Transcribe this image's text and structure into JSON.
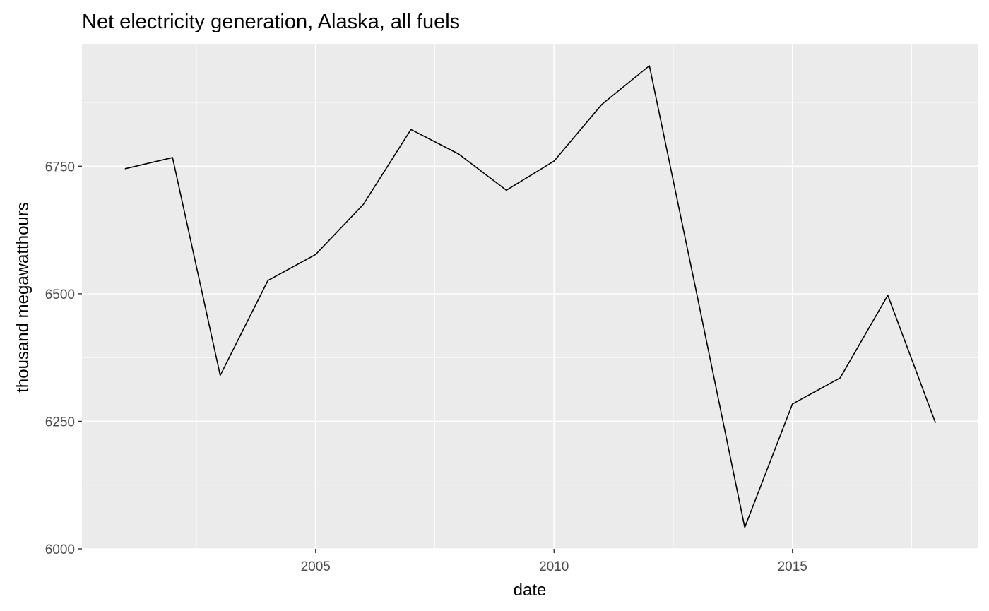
{
  "chart_data": {
    "type": "line",
    "title": "Net electricity generation, Alaska, all fuels",
    "xlabel": "date",
    "ylabel": "thousand megawatthours",
    "x": [
      2001,
      2002,
      2003,
      2004,
      2005,
      2006,
      2007,
      2008,
      2009,
      2010,
      2011,
      2012,
      2013,
      2014,
      2015,
      2016,
      2017,
      2018
    ],
    "series": [
      {
        "values": [
          6745,
          6767,
          6340,
          6526,
          6577,
          6675,
          6822,
          6774,
          6703,
          6760,
          6871,
          6947,
          6497,
          6042,
          6284,
          6335,
          6497,
          6247
        ]
      }
    ],
    "xlim": [
      2000.1,
      2018.9
    ],
    "ylim": [
      6000,
      6990
    ],
    "x_ticks": [
      2005,
      2010,
      2015
    ],
    "y_ticks": [
      6000,
      6250,
      6500,
      6750
    ],
    "grid": true,
    "line_color": "#000000",
    "panel_color": "#ebebeb",
    "grid_color": "#ffffff"
  }
}
